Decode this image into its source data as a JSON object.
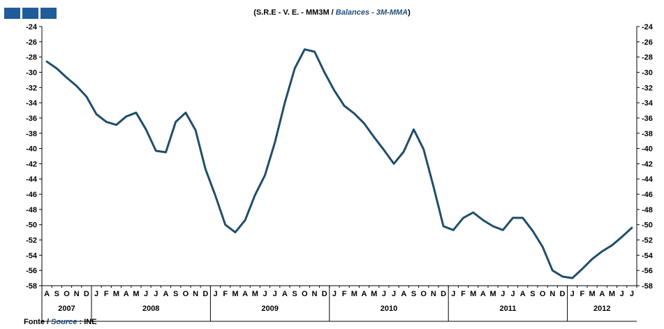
{
  "header": {
    "title_pt": "(S.R.E - V. E. - MM3M / ",
    "title_en": "Balances - 3M-MMA",
    "title_close": ")",
    "logo_colors": [
      "#1f5c99",
      "#1f5c99",
      "#1f5c99"
    ]
  },
  "footer": {
    "source_label_pt": "Fonte / ",
    "source_label_en": "Source",
    "source_sep": " : ",
    "source_value": "INE"
  },
  "colors": {
    "line": "#1f4e6b",
    "axis": "#000000",
    "accent": "#1f4e79"
  },
  "chart_data": {
    "type": "line",
    "title": "(S.R.E - V. E. - MM3M / Balances - 3M-MMA)",
    "ylim": [
      -58,
      -24
    ],
    "yticks": [
      -24,
      -26,
      -28,
      -30,
      -32,
      -34,
      -36,
      -38,
      -40,
      -42,
      -44,
      -46,
      -48,
      -50,
      -52,
      -54,
      -56,
      -58
    ],
    "grid": false,
    "months": [
      "A",
      "S",
      "O",
      "N",
      "D",
      "J",
      "F",
      "M",
      "A",
      "M",
      "J",
      "J",
      "A",
      "S",
      "O",
      "N",
      "D",
      "J",
      "F",
      "M",
      "A",
      "M",
      "J",
      "J",
      "A",
      "S",
      "O",
      "N",
      "D",
      "J",
      "F",
      "M",
      "A",
      "M",
      "J",
      "J",
      "A",
      "S",
      "O",
      "N",
      "D",
      "J",
      "F",
      "M",
      "A",
      "M",
      "J",
      "J",
      "A",
      "S",
      "O",
      "N",
      "D",
      "J",
      "F",
      "M",
      "A",
      "M",
      "J",
      "J"
    ],
    "years": [
      {
        "label": "2007",
        "count": 5
      },
      {
        "label": "2008",
        "count": 12
      },
      {
        "label": "2009",
        "count": 12
      },
      {
        "label": "2010",
        "count": 12
      },
      {
        "label": "2011",
        "count": 12
      },
      {
        "label": "2012",
        "count": 7
      }
    ],
    "series": [
      {
        "values": [
          -28.6,
          -29.5,
          -30.7,
          -31.8,
          -33.2,
          -35.5,
          -36.5,
          -36.9,
          -35.8,
          -35.3,
          -37.5,
          -40.3,
          -40.5,
          -36.5,
          -35.3,
          -37.6,
          -42.7,
          -46.2,
          -50.0,
          -51.0,
          -49.4,
          -46.1,
          -43.5,
          -39.2,
          -34.0,
          -29.5,
          -27.0,
          -27.3,
          -30.0,
          -32.4,
          -34.4,
          -35.4,
          -36.7,
          -38.5,
          -40.2,
          -42.0,
          -40.4,
          -37.5,
          -40.1,
          -45.0,
          -50.2,
          -50.7,
          -49.1,
          -48.4,
          -49.4,
          -50.2,
          -50.7,
          -49.1,
          -49.1,
          -50.8,
          -52.9,
          -56.0,
          -56.8,
          -57.0,
          -55.8,
          -54.5,
          -53.5,
          -52.7,
          -51.6,
          -50.4
        ]
      }
    ]
  }
}
